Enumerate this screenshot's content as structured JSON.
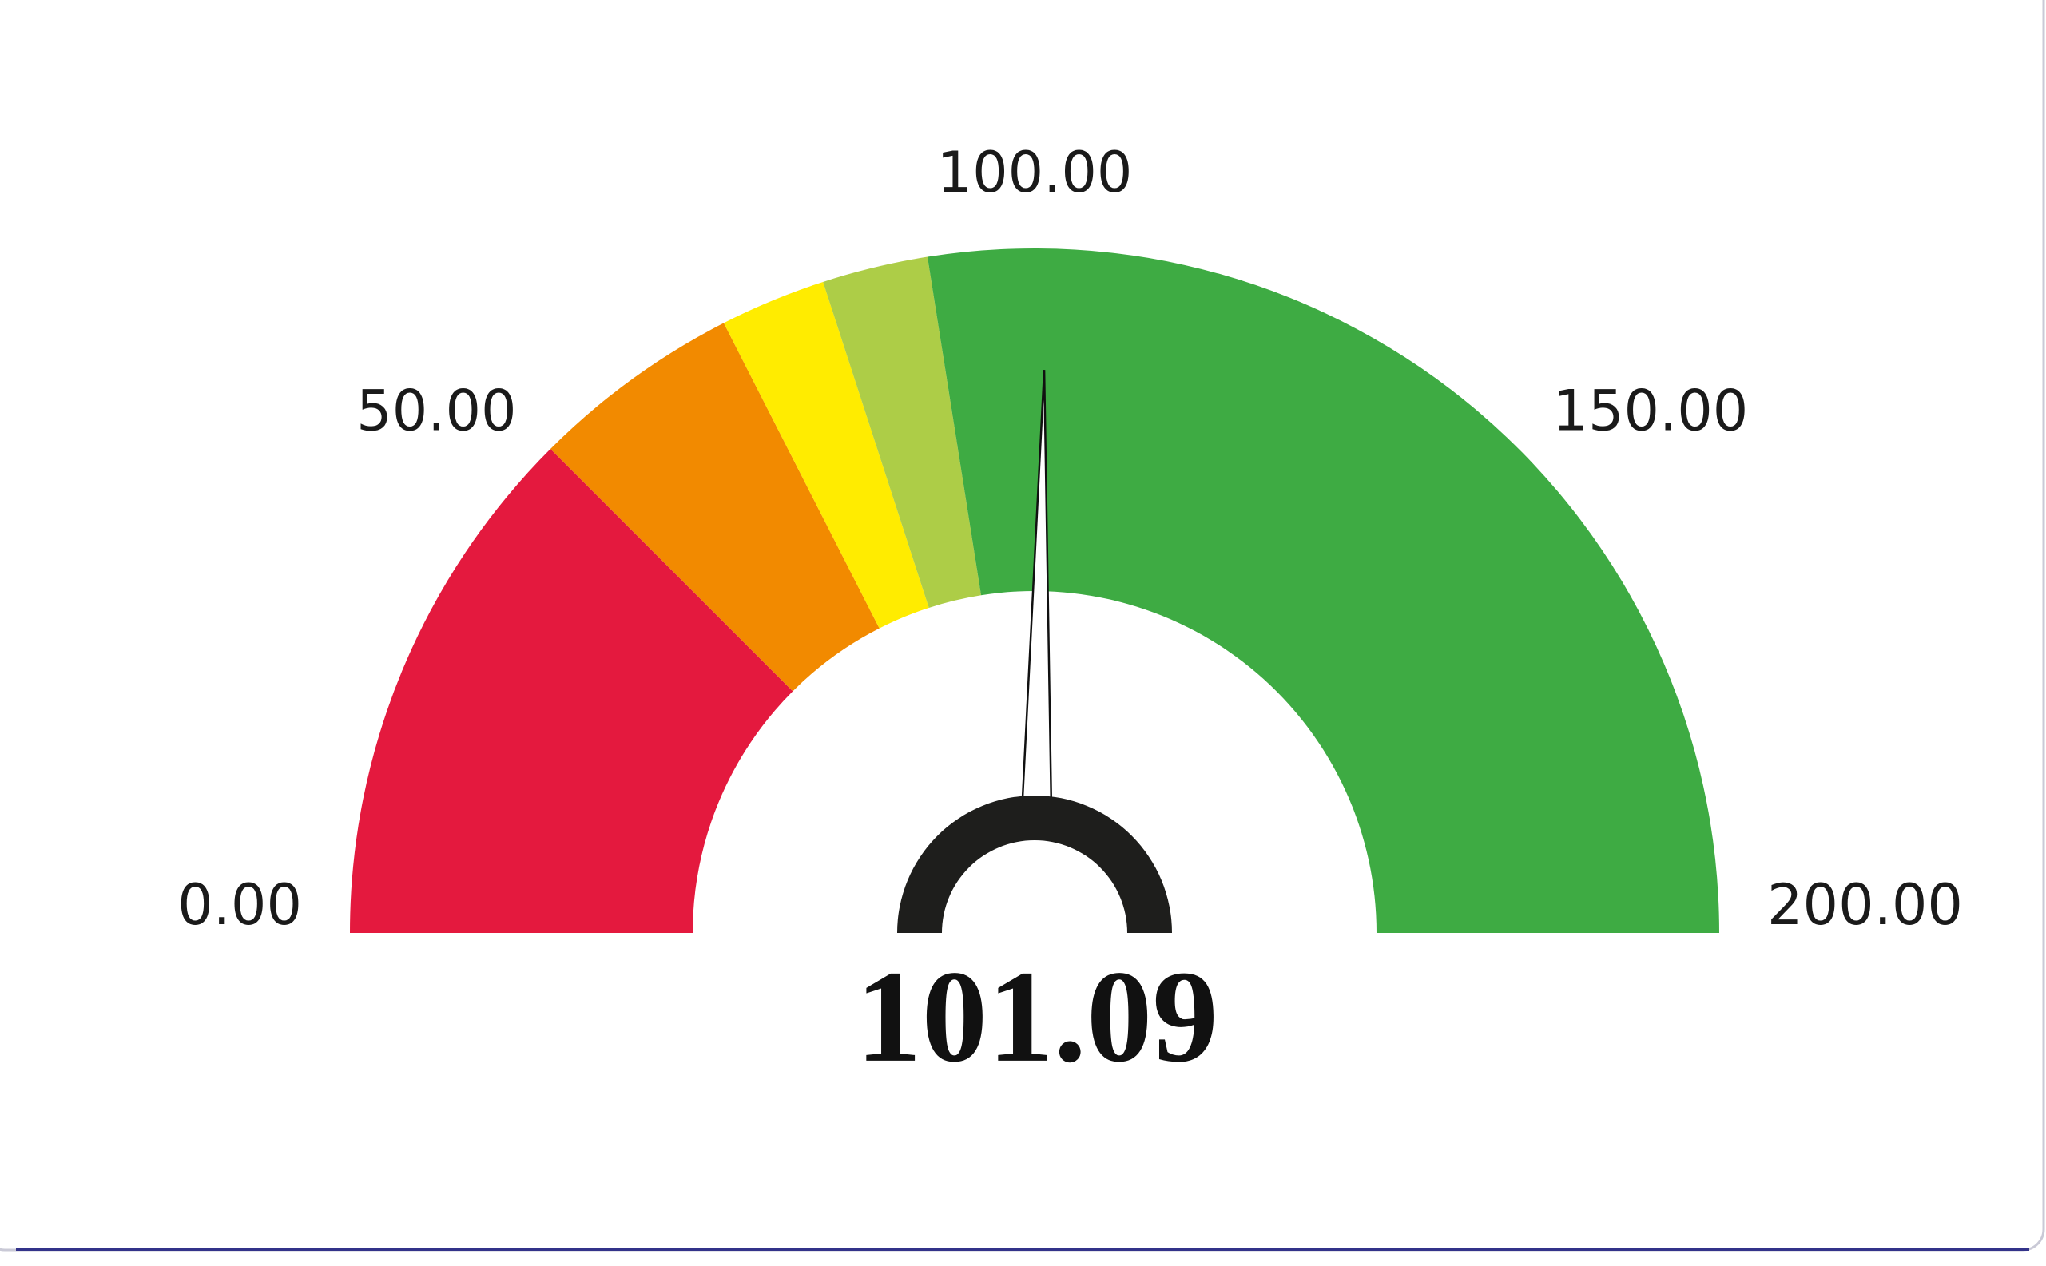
{
  "chart_data": {
    "type": "gauge",
    "min": 0,
    "max": 200,
    "value": 101.09,
    "bands": [
      {
        "to": 50,
        "color": "#e4193e"
      },
      {
        "to": 70,
        "color": "#f28a00"
      },
      {
        "to": 80,
        "color": "#ffec00"
      },
      {
        "to": 90,
        "color": "#adcd47"
      },
      {
        "to": 200,
        "color": "#3eab43"
      }
    ],
    "ticks": [
      {
        "value": 0,
        "label": "0.00"
      },
      {
        "value": 50,
        "label": "50.00"
      },
      {
        "value": 100,
        "label": "100.00"
      },
      {
        "value": 150,
        "label": "150.00"
      },
      {
        "value": 200,
        "label": "200.00"
      }
    ]
  }
}
